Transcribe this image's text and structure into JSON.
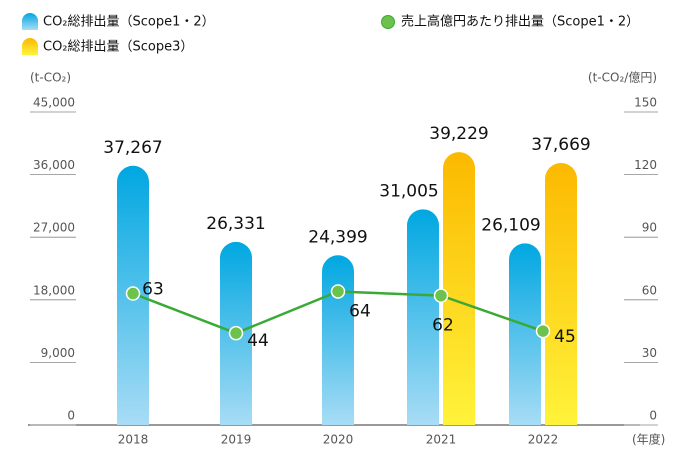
{
  "chart_data": {
    "type": "bar",
    "categories": [
      "2018",
      "2019",
      "2020",
      "2021",
      "2022"
    ],
    "series": [
      {
        "name": "CO₂総排出量（Scope1・2）",
        "type": "bar",
        "color": "#00a7e1",
        "values": [
          37267,
          26331,
          24399,
          31005,
          26109
        ],
        "value_labels": [
          "37,267",
          "26,331",
          "24,399",
          "31,005",
          "26,109"
        ]
      },
      {
        "name": "売上高億円あたり排出量（Scope1・2）",
        "type": "line",
        "axis": "y2",
        "color": "#3aaa35",
        "values": [
          63,
          44,
          64,
          62,
          45
        ]
      },
      {
        "name": "CO₂総排出量（Scope3）",
        "type": "bar",
        "color": "#fbb900",
        "values": [
          null,
          null,
          null,
          39229,
          37669
        ],
        "value_labels": [
          null,
          null,
          null,
          "39,229",
          "37,669"
        ]
      }
    ],
    "ylabel": "(t-CO₂)",
    "y2label": "(t-CO₂/億円)",
    "xlabel": "(年度)",
    "ylim": [
      0,
      45000
    ],
    "yticks": [
      0,
      {
        "value": 9000,
        "label": "9,000"
      },
      {
        "value": 18000,
        "label": "18,000"
      },
      {
        "value": 27000,
        "label": "27,000"
      },
      {
        "value": 36000,
        "label": "36,000"
      },
      {
        "value": 45000,
        "label": "45,000"
      }
    ],
    "y2lim": [
      0,
      150
    ],
    "y2ticks": [
      0,
      30,
      60,
      90,
      120,
      150
    ]
  }
}
